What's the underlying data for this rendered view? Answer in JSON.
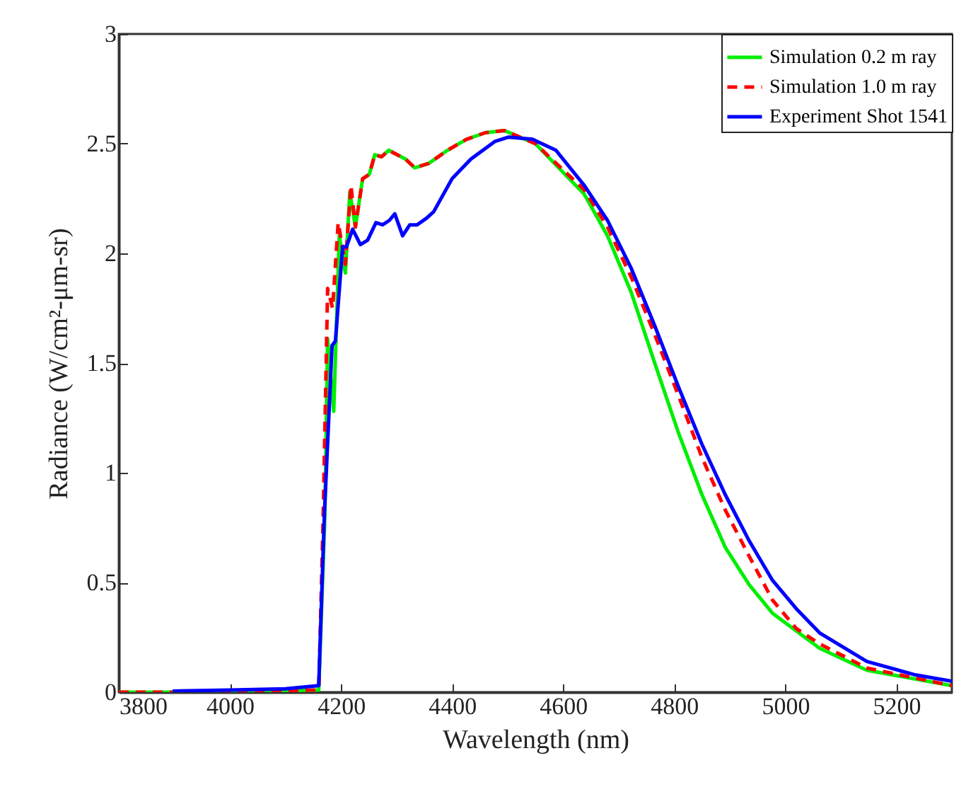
{
  "chart_data": {
    "type": "line",
    "xlabel": "Wavelength (nm)",
    "ylabel": "Radiance (W/cm²-μm-sr)",
    "xlim": [
      3800,
      5300
    ],
    "ylim": [
      0,
      3
    ],
    "xticks": [
      3800,
      4000,
      4200,
      4400,
      4600,
      4800,
      5000,
      5200
    ],
    "yticks": [
      0,
      0.5,
      1,
      1.5,
      2,
      2.5,
      3
    ],
    "legend": "top right",
    "grid": false,
    "series": [
      {
        "name": "Simulation 0.2 m ray",
        "color": "#00ee00",
        "line_style": "solid",
        "x": [
          3800,
          4000,
          4160,
          4171,
          4176,
          4187,
          4197,
          4208,
          4216,
          4226,
          4239,
          4251,
          4261,
          4273,
          4286,
          4316,
          4333,
          4358,
          4392,
          4426,
          4460,
          4494,
          4550,
          4638,
          4680,
          4723,
          4765,
          4808,
          4850,
          4892,
          4935,
          4977,
          5062,
          5147,
          5300
        ],
        "values": [
          0,
          0,
          0.01,
          0.8,
          1.61,
          1.28,
          2.08,
          1.91,
          2.28,
          2.12,
          2.34,
          2.36,
          2.45,
          2.44,
          2.47,
          2.43,
          2.39,
          2.41,
          2.47,
          2.52,
          2.55,
          2.56,
          2.5,
          2.27,
          2.08,
          1.82,
          1.5,
          1.18,
          0.9,
          0.66,
          0.49,
          0.36,
          0.2,
          0.1,
          0.03
        ]
      },
      {
        "name": "Simulation 1.0 m ray",
        "color": "#ff0000",
        "line_style": "dashed",
        "x": [
          3800,
          4000,
          4160,
          4168,
          4176,
          4185,
          4195,
          4208,
          4218,
          4226,
          4239,
          4251,
          4261,
          4273,
          4286,
          4316,
          4333,
          4358,
          4392,
          4426,
          4460,
          4494,
          4550,
          4638,
          4680,
          4723,
          4765,
          4808,
          4850,
          4892,
          4935,
          4977,
          5020,
          5062,
          5147,
          5300
        ],
        "values": [
          0,
          0,
          0.01,
          0.8,
          1.84,
          1.75,
          2.14,
          1.95,
          2.31,
          2.12,
          2.34,
          2.36,
          2.45,
          2.44,
          2.47,
          2.43,
          2.39,
          2.41,
          2.47,
          2.52,
          2.55,
          2.56,
          2.5,
          2.29,
          2.12,
          1.89,
          1.63,
          1.35,
          1.07,
          0.83,
          0.62,
          0.42,
          0.29,
          0.22,
          0.11,
          0.03
        ]
      },
      {
        "name": "Experiment Shot 1541",
        "color": "#0000ff",
        "line_style": "solid",
        "x": [
          3897,
          4000,
          4100,
          4160,
          4170,
          4184,
          4190,
          4203,
          4210,
          4221,
          4235,
          4248,
          4263,
          4275,
          4287,
          4297,
          4311,
          4324,
          4337,
          4354,
          4367,
          4400,
          4434,
          4477,
          4502,
          4545,
          4587,
          4638,
          4680,
          4723,
          4765,
          4808,
          4850,
          4892,
          4935,
          4977,
          5020,
          5062,
          5147,
          5232,
          5300
        ],
        "values": [
          0.005,
          0.01,
          0.015,
          0.03,
          0.8,
          1.58,
          1.6,
          2.03,
          2.03,
          2.11,
          2.04,
          2.06,
          2.14,
          2.13,
          2.15,
          2.18,
          2.08,
          2.13,
          2.13,
          2.16,
          2.19,
          2.34,
          2.43,
          2.51,
          2.53,
          2.52,
          2.47,
          2.31,
          2.15,
          1.93,
          1.67,
          1.39,
          1.13,
          0.9,
          0.69,
          0.51,
          0.38,
          0.27,
          0.14,
          0.08,
          0.05
        ]
      }
    ]
  }
}
